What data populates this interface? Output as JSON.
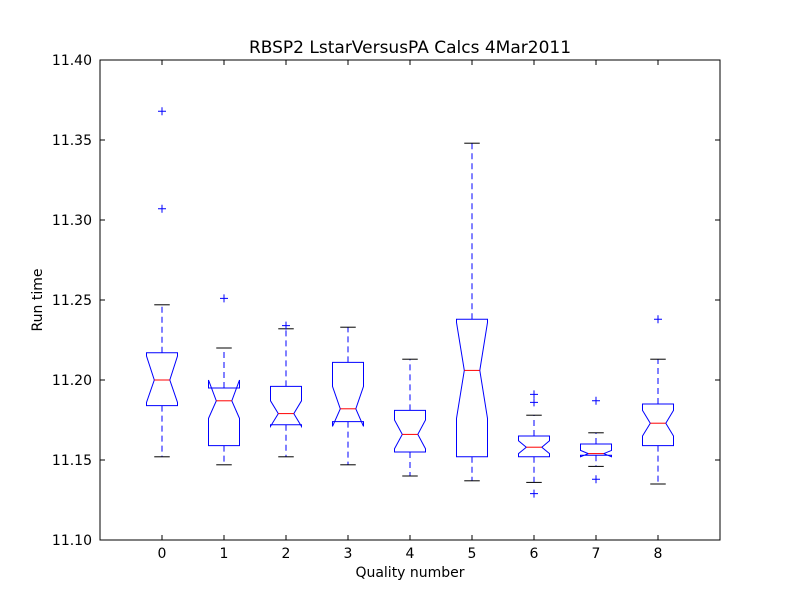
{
  "chart_data": {
    "type": "boxplot",
    "title": "RBSP2 LstarVersusPA Calcs 4Mar2011",
    "xlabel": "Quality number",
    "ylabel": "Run time",
    "ylim": [
      11.1,
      11.4
    ],
    "yticks": [
      "11.10",
      "11.15",
      "11.20",
      "11.25",
      "11.30",
      "11.35",
      "11.40"
    ],
    "categories": [
      "0",
      "1",
      "2",
      "3",
      "4",
      "5",
      "6",
      "7",
      "8"
    ],
    "notched": true,
    "colors": {
      "box": "#0000ff",
      "median": "#ff0000",
      "whisker_cap": "#000000",
      "flier": "#0000ff"
    },
    "boxes": [
      {
        "category": "0",
        "whisker_low": 11.152,
        "q1": 11.184,
        "notch_low": 11.186,
        "median": 11.2,
        "notch_high": 11.215,
        "q3": 11.217,
        "whisker_high": 11.247,
        "fliers": [
          11.307,
          11.368
        ]
      },
      {
        "category": "1",
        "whisker_low": 11.147,
        "q1": 11.159,
        "notch_low": 11.176,
        "median": 11.187,
        "notch_high": 11.2,
        "q3": 11.195,
        "whisker_high": 11.22,
        "fliers": [
          11.251
        ]
      },
      {
        "category": "2",
        "whisker_low": 11.152,
        "q1": 11.172,
        "notch_low": 11.171,
        "median": 11.179,
        "notch_high": 11.187,
        "q3": 11.196,
        "whisker_high": 11.232,
        "fliers": [
          11.234
        ]
      },
      {
        "category": "3",
        "whisker_low": 11.147,
        "q1": 11.174,
        "notch_low": 11.171,
        "median": 11.182,
        "notch_high": 11.196,
        "q3": 11.211,
        "whisker_high": 11.233,
        "fliers": []
      },
      {
        "category": "4",
        "whisker_low": 11.14,
        "q1": 11.155,
        "notch_low": 11.157,
        "median": 11.166,
        "notch_high": 11.175,
        "q3": 11.181,
        "whisker_high": 11.213,
        "fliers": []
      },
      {
        "category": "5",
        "whisker_low": 11.137,
        "q1": 11.152,
        "notch_low": 11.176,
        "median": 11.206,
        "notch_high": 11.236,
        "q3": 11.238,
        "whisker_high": 11.348,
        "fliers": []
      },
      {
        "category": "6",
        "whisker_low": 11.136,
        "q1": 11.152,
        "notch_low": 11.154,
        "median": 11.158,
        "notch_high": 11.162,
        "q3": 11.165,
        "whisker_high": 11.178,
        "fliers": [
          11.129,
          11.186,
          11.191
        ]
      },
      {
        "category": "7",
        "whisker_low": 11.146,
        "q1": 11.153,
        "notch_low": 11.152,
        "median": 11.154,
        "notch_high": 11.156,
        "q3": 11.16,
        "whisker_high": 11.167,
        "fliers": [
          11.138,
          11.187
        ]
      },
      {
        "category": "8",
        "whisker_low": 11.135,
        "q1": 11.159,
        "notch_low": 11.165,
        "median": 11.173,
        "notch_high": 11.181,
        "q3": 11.185,
        "whisker_high": 11.213,
        "fliers": [
          11.238
        ]
      }
    ]
  }
}
